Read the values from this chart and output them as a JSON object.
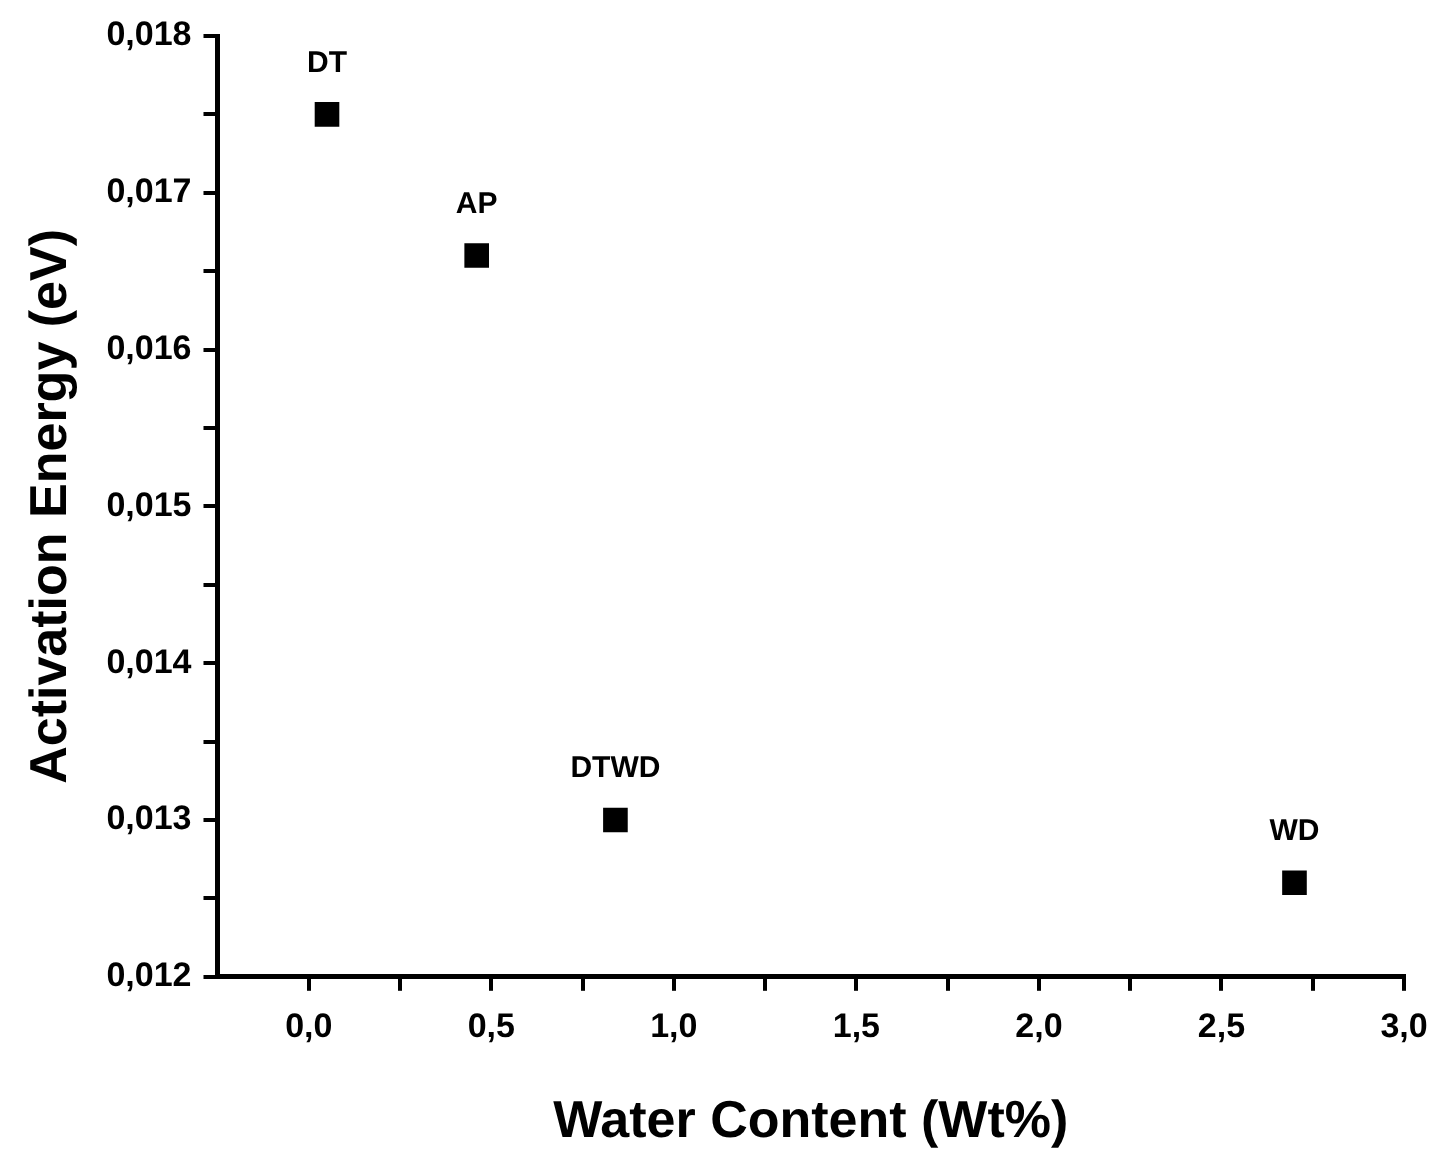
{
  "chart_data": {
    "type": "scatter",
    "xlabel": "Water Content (Wt%)",
    "ylabel": "Activation Energy (eV)",
    "x": [
      0.05,
      0.46,
      0.84,
      2.7
    ],
    "series": [
      {
        "color": "#000000",
        "values": [
          0.0175,
          0.0166,
          0.013,
          0.0126
        ]
      }
    ],
    "marker": "square",
    "grid": false,
    "legend": false,
    "xlim": [
      -0.25,
      3.0
    ],
    "xticks": [
      {
        "value": 0,
        "label": "0,0"
      },
      {
        "value": 0.25,
        "label": null
      },
      {
        "value": 0.5,
        "label": "0,5"
      },
      {
        "value": 0.75,
        "label": null
      },
      {
        "value": 1,
        "label": "1,0"
      },
      {
        "value": 1.25,
        "label": null
      },
      {
        "value": 1.5,
        "label": "1,5"
      },
      {
        "value": 1.75,
        "label": null
      },
      {
        "value": 2,
        "label": "2,0"
      },
      {
        "value": 2.25,
        "label": null
      },
      {
        "value": 2.5,
        "label": "2,5"
      },
      {
        "value": 2.75,
        "label": null
      },
      {
        "value": 3,
        "label": "3,0"
      }
    ],
    "ylim": [
      0.012,
      0.018
    ],
    "yticks": [
      {
        "value": 0.012,
        "label": "0,012"
      },
      {
        "value": 0.0125,
        "label": null
      },
      {
        "value": 0.013,
        "label": "0,013"
      },
      {
        "value": 0.0135,
        "label": null
      },
      {
        "value": 0.014,
        "label": "0,014"
      },
      {
        "value": 0.0145,
        "label": null
      },
      {
        "value": 0.015,
        "label": "0,015"
      },
      {
        "value": 0.0155,
        "label": null
      },
      {
        "value": 0.016,
        "label": "0,016"
      },
      {
        "value": 0.0165,
        "label": null
      },
      {
        "value": 0.017,
        "label": "0,017"
      },
      {
        "value": 0.0175,
        "label": null
      },
      {
        "value": 0.018,
        "label": "0,018"
      }
    ],
    "annotations": [
      {
        "text": "DT",
        "x": 0.05,
        "y": 0.0175
      },
      {
        "text": "AP",
        "x": 0.46,
        "y": 0.0166
      },
      {
        "text": "DTWD",
        "x": 0.84,
        "y": 0.013
      },
      {
        "text": "WD",
        "x": 2.7,
        "y": 0.0126
      }
    ]
  }
}
